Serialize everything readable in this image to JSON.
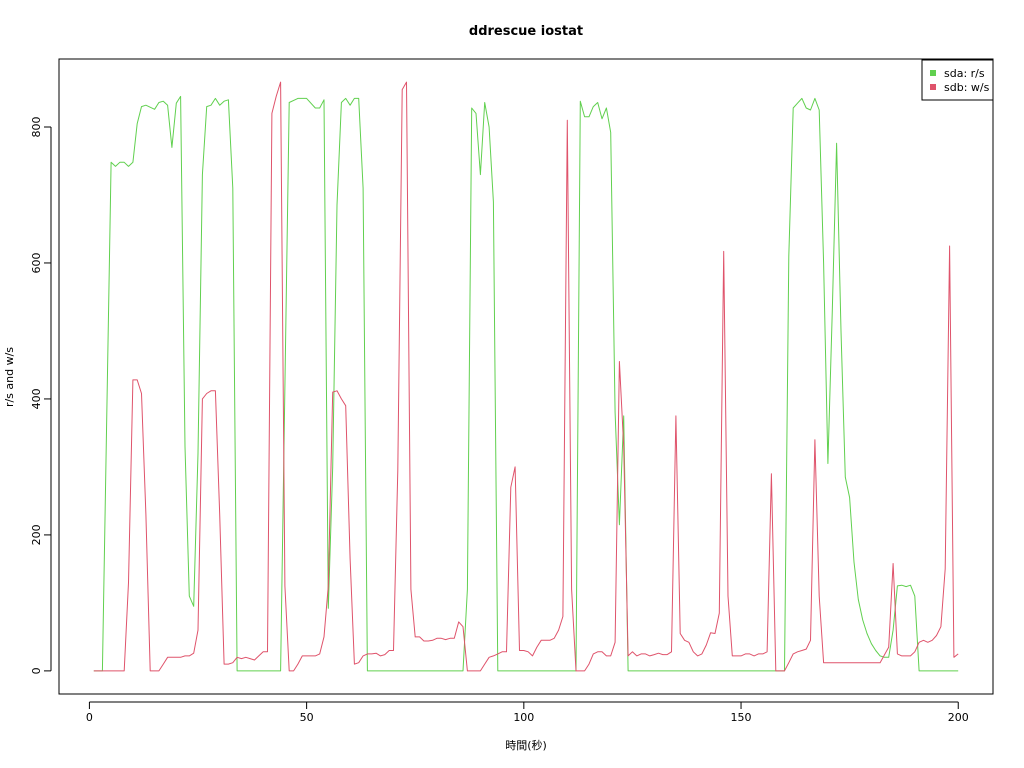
{
  "chart_data": {
    "type": "line",
    "title": "ddrescue iostat",
    "xlabel": "時間(秒)",
    "ylabel": "r/s and w/s",
    "xlim": [
      -7,
      208
    ],
    "ylim": [
      -34,
      900
    ],
    "xticks": [
      0,
      50,
      100,
      150,
      200
    ],
    "yticks": [
      0,
      200,
      400,
      600,
      800
    ],
    "legend_position": "top-right",
    "legend": [
      "sda: r/s",
      "sdb: w/s"
    ],
    "colors": {
      "sda": "#61d04f",
      "sdb": "#df536b"
    },
    "series": [
      {
        "name": "sda: r/s",
        "color": "#61d04f",
        "points": [
          [
            1,
            0
          ],
          [
            2,
            0
          ],
          [
            3,
            0
          ],
          [
            5,
            748
          ],
          [
            6,
            742
          ],
          [
            7,
            748
          ],
          [
            8,
            748
          ],
          [
            9,
            742
          ],
          [
            10,
            748
          ],
          [
            11,
            805
          ],
          [
            12,
            830
          ],
          [
            13,
            832
          ],
          [
            15,
            826
          ],
          [
            16,
            836
          ],
          [
            17,
            838
          ],
          [
            18,
            832
          ],
          [
            19,
            770
          ],
          [
            20,
            835
          ],
          [
            21,
            845
          ],
          [
            22,
            330
          ],
          [
            23,
            110
          ],
          [
            24,
            95
          ],
          [
            25,
            320
          ],
          [
            26,
            730
          ],
          [
            27,
            830
          ],
          [
            28,
            832
          ],
          [
            29,
            842
          ],
          [
            30,
            832
          ],
          [
            31,
            838
          ],
          [
            32,
            840
          ],
          [
            33,
            710
          ],
          [
            34,
            0
          ],
          [
            36,
            0
          ],
          [
            40,
            0
          ],
          [
            43,
            0
          ],
          [
            44,
            0
          ],
          [
            46,
            836
          ],
          [
            48,
            842
          ],
          [
            50,
            842
          ],
          [
            52,
            828
          ],
          [
            53,
            828
          ],
          [
            54,
            840
          ],
          [
            55,
            92
          ],
          [
            56,
            300
          ],
          [
            57,
            685
          ],
          [
            58,
            836
          ],
          [
            59,
            842
          ],
          [
            60,
            832
          ],
          [
            61,
            842
          ],
          [
            62,
            842
          ],
          [
            63,
            710
          ],
          [
            64,
            0
          ],
          [
            70,
            0
          ],
          [
            80,
            0
          ],
          [
            86,
            0
          ],
          [
            87,
            120
          ],
          [
            88,
            828
          ],
          [
            89,
            820
          ],
          [
            90,
            730
          ],
          [
            91,
            836
          ],
          [
            92,
            800
          ],
          [
            93,
            690
          ],
          [
            94,
            0
          ],
          [
            100,
            0
          ],
          [
            110,
            0
          ],
          [
            112,
            0
          ],
          [
            113,
            838
          ],
          [
            114,
            815
          ],
          [
            115,
            815
          ],
          [
            116,
            830
          ],
          [
            117,
            836
          ],
          [
            118,
            812
          ],
          [
            119,
            828
          ],
          [
            120,
            792
          ],
          [
            121,
            380
          ],
          [
            122,
            215
          ],
          [
            123,
            375
          ],
          [
            124,
            0
          ],
          [
            130,
            0
          ],
          [
            140,
            0
          ],
          [
            150,
            0
          ],
          [
            160,
            0
          ],
          [
            161,
            610
          ],
          [
            162,
            828
          ],
          [
            163,
            835
          ],
          [
            164,
            842
          ],
          [
            165,
            828
          ],
          [
            166,
            825
          ],
          [
            167,
            842
          ],
          [
            168,
            825
          ],
          [
            169,
            600
          ],
          [
            170,
            305
          ],
          [
            171,
            530
          ],
          [
            172,
            776
          ],
          [
            173,
            500
          ],
          [
            174,
            285
          ],
          [
            175,
            255
          ],
          [
            176,
            160
          ],
          [
            177,
            105
          ],
          [
            178,
            75
          ],
          [
            179,
            55
          ],
          [
            180,
            40
          ],
          [
            181,
            30
          ],
          [
            182,
            22
          ],
          [
            183,
            20
          ],
          [
            184,
            20
          ],
          [
            185,
            60
          ],
          [
            186,
            125
          ],
          [
            187,
            126
          ],
          [
            188,
            124
          ],
          [
            189,
            126
          ],
          [
            190,
            110
          ],
          [
            191,
            0
          ],
          [
            195,
            0
          ],
          [
            200,
            0
          ]
        ]
      },
      {
        "name": "sdb: w/s",
        "color": "#df536b",
        "points": [
          [
            1,
            0
          ],
          [
            3,
            0
          ],
          [
            5,
            0
          ],
          [
            7,
            0
          ],
          [
            8,
            0
          ],
          [
            9,
            130
          ],
          [
            10,
            428
          ],
          [
            11,
            428
          ],
          [
            12,
            408
          ],
          [
            13,
            230
          ],
          [
            14,
            0
          ],
          [
            15,
            0
          ],
          [
            16,
            0
          ],
          [
            17,
            10
          ],
          [
            18,
            20
          ],
          [
            20,
            20
          ],
          [
            21,
            20
          ],
          [
            22,
            22
          ],
          [
            23,
            22
          ],
          [
            24,
            26
          ],
          [
            25,
            60
          ],
          [
            26,
            400
          ],
          [
            27,
            408
          ],
          [
            28,
            412
          ],
          [
            29,
            412
          ],
          [
            30,
            230
          ],
          [
            31,
            10
          ],
          [
            32,
            10
          ],
          [
            33,
            12
          ],
          [
            34,
            20
          ],
          [
            35,
            18
          ],
          [
            36,
            20
          ],
          [
            37,
            18
          ],
          [
            38,
            16
          ],
          [
            39,
            22
          ],
          [
            40,
            28
          ],
          [
            41,
            28
          ],
          [
            42,
            820
          ],
          [
            43,
            845
          ],
          [
            44,
            866
          ],
          [
            45,
            125
          ],
          [
            46,
            0
          ],
          [
            47,
            0
          ],
          [
            48,
            10
          ],
          [
            49,
            22
          ],
          [
            50,
            22
          ],
          [
            51,
            22
          ],
          [
            52,
            22
          ],
          [
            53,
            25
          ],
          [
            54,
            50
          ],
          [
            55,
            125
          ],
          [
            56,
            410
          ],
          [
            57,
            412
          ],
          [
            58,
            400
          ],
          [
            59,
            390
          ],
          [
            60,
            165
          ],
          [
            61,
            10
          ],
          [
            62,
            12
          ],
          [
            63,
            22
          ],
          [
            64,
            25
          ],
          [
            65,
            25
          ],
          [
            66,
            26
          ],
          [
            67,
            22
          ],
          [
            68,
            24
          ],
          [
            69,
            30
          ],
          [
            70,
            30
          ],
          [
            71,
            295
          ],
          [
            72,
            855
          ],
          [
            73,
            866
          ],
          [
            74,
            120
          ],
          [
            75,
            50
          ],
          [
            76,
            50
          ],
          [
            77,
            44
          ],
          [
            78,
            44
          ],
          [
            79,
            45
          ],
          [
            80,
            48
          ],
          [
            81,
            48
          ],
          [
            82,
            46
          ],
          [
            83,
            48
          ],
          [
            84,
            48
          ],
          [
            85,
            72
          ],
          [
            86,
            65
          ],
          [
            87,
            0
          ],
          [
            88,
            0
          ],
          [
            89,
            0
          ],
          [
            90,
            0
          ],
          [
            91,
            10
          ],
          [
            92,
            20
          ],
          [
            93,
            22
          ],
          [
            94,
            25
          ],
          [
            95,
            28
          ],
          [
            96,
            28
          ],
          [
            97,
            270
          ],
          [
            98,
            300
          ],
          [
            99,
            30
          ],
          [
            100,
            30
          ],
          [
            101,
            28
          ],
          [
            102,
            22
          ],
          [
            103,
            35
          ],
          [
            104,
            45
          ],
          [
            105,
            45
          ],
          [
            106,
            45
          ],
          [
            107,
            48
          ],
          [
            108,
            60
          ],
          [
            109,
            80
          ],
          [
            110,
            810
          ],
          [
            111,
            120
          ],
          [
            112,
            0
          ],
          [
            113,
            0
          ],
          [
            114,
            0
          ],
          [
            115,
            10
          ],
          [
            116,
            25
          ],
          [
            117,
            28
          ],
          [
            118,
            28
          ],
          [
            119,
            22
          ],
          [
            120,
            22
          ],
          [
            121,
            42
          ],
          [
            122,
            455
          ],
          [
            123,
            330
          ],
          [
            124,
            22
          ],
          [
            125,
            28
          ],
          [
            126,
            22
          ],
          [
            127,
            25
          ],
          [
            128,
            25
          ],
          [
            129,
            22
          ],
          [
            130,
            24
          ],
          [
            131,
            26
          ],
          [
            132,
            24
          ],
          [
            133,
            24
          ],
          [
            134,
            28
          ],
          [
            135,
            375
          ],
          [
            136,
            55
          ],
          [
            137,
            45
          ],
          [
            138,
            42
          ],
          [
            139,
            28
          ],
          [
            140,
            22
          ],
          [
            141,
            25
          ],
          [
            142,
            38
          ],
          [
            143,
            56
          ],
          [
            144,
            55
          ],
          [
            145,
            85
          ],
          [
            146,
            617
          ],
          [
            147,
            110
          ],
          [
            148,
            22
          ],
          [
            149,
            22
          ],
          [
            150,
            22
          ],
          [
            151,
            25
          ],
          [
            152,
            25
          ],
          [
            153,
            22
          ],
          [
            154,
            25
          ],
          [
            155,
            25
          ],
          [
            156,
            28
          ],
          [
            157,
            290
          ],
          [
            158,
            0
          ],
          [
            159,
            0
          ],
          [
            160,
            0
          ],
          [
            161,
            12
          ],
          [
            162,
            25
          ],
          [
            163,
            28
          ],
          [
            164,
            30
          ],
          [
            165,
            32
          ],
          [
            166,
            45
          ],
          [
            167,
            340
          ],
          [
            168,
            110
          ],
          [
            169,
            12
          ],
          [
            170,
            12
          ],
          [
            175,
            12
          ],
          [
            180,
            12
          ],
          [
            182,
            12
          ],
          [
            184,
            35
          ],
          [
            185,
            158
          ],
          [
            186,
            25
          ],
          [
            187,
            22
          ],
          [
            188,
            22
          ],
          [
            189,
            22
          ],
          [
            190,
            28
          ],
          [
            191,
            42
          ],
          [
            192,
            45
          ],
          [
            193,
            42
          ],
          [
            194,
            45
          ],
          [
            195,
            52
          ],
          [
            196,
            65
          ],
          [
            197,
            150
          ],
          [
            198,
            625
          ],
          [
            199,
            20
          ],
          [
            200,
            25
          ]
        ]
      }
    ]
  }
}
